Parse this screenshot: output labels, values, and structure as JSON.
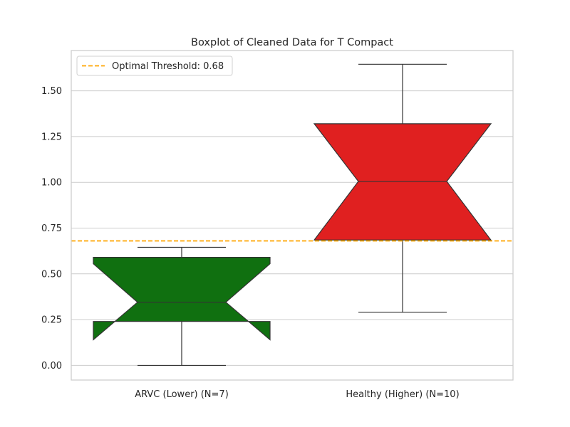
{
  "chart_data": {
    "type": "boxplot",
    "title": "Boxplot of Cleaned Data for T Compact",
    "xlabel": "",
    "ylabel": "",
    "ylim": [
      -0.08,
      1.72
    ],
    "yticks": [
      0.0,
      0.25,
      0.5,
      0.75,
      1.0,
      1.25,
      1.5
    ],
    "ytick_labels": [
      "0.00",
      "0.25",
      "0.50",
      "0.75",
      "1.00",
      "1.25",
      "1.50"
    ],
    "grid": true,
    "notched": true,
    "categories": [
      "ARVC (Lower) (N=7)",
      "Healthy (Higher) (N=10)"
    ],
    "boxes": [
      {
        "label": "ARVC (Lower) (N=7)",
        "whisker_low": 0.0,
        "q1": 0.24,
        "median": 0.345,
        "q3": 0.59,
        "whisker_high": 0.645,
        "notch_low": 0.14,
        "notch_high": 0.555,
        "color": "#107010"
      },
      {
        "label": "Healthy (Higher) (N=10)",
        "whisker_low": 0.29,
        "q1": 0.685,
        "median": 1.005,
        "q3": 1.32,
        "whisker_high": 1.645,
        "notch_low": 0.685,
        "notch_high": 1.32,
        "color": "#e02020"
      }
    ],
    "threshold": {
      "value": 0.68,
      "label": "Optimal Threshold: 0.68",
      "color": "#ffa500",
      "style": "dashed"
    },
    "legend": {
      "placement": "top-left",
      "entries": [
        "Optimal Threshold: 0.68"
      ]
    }
  }
}
